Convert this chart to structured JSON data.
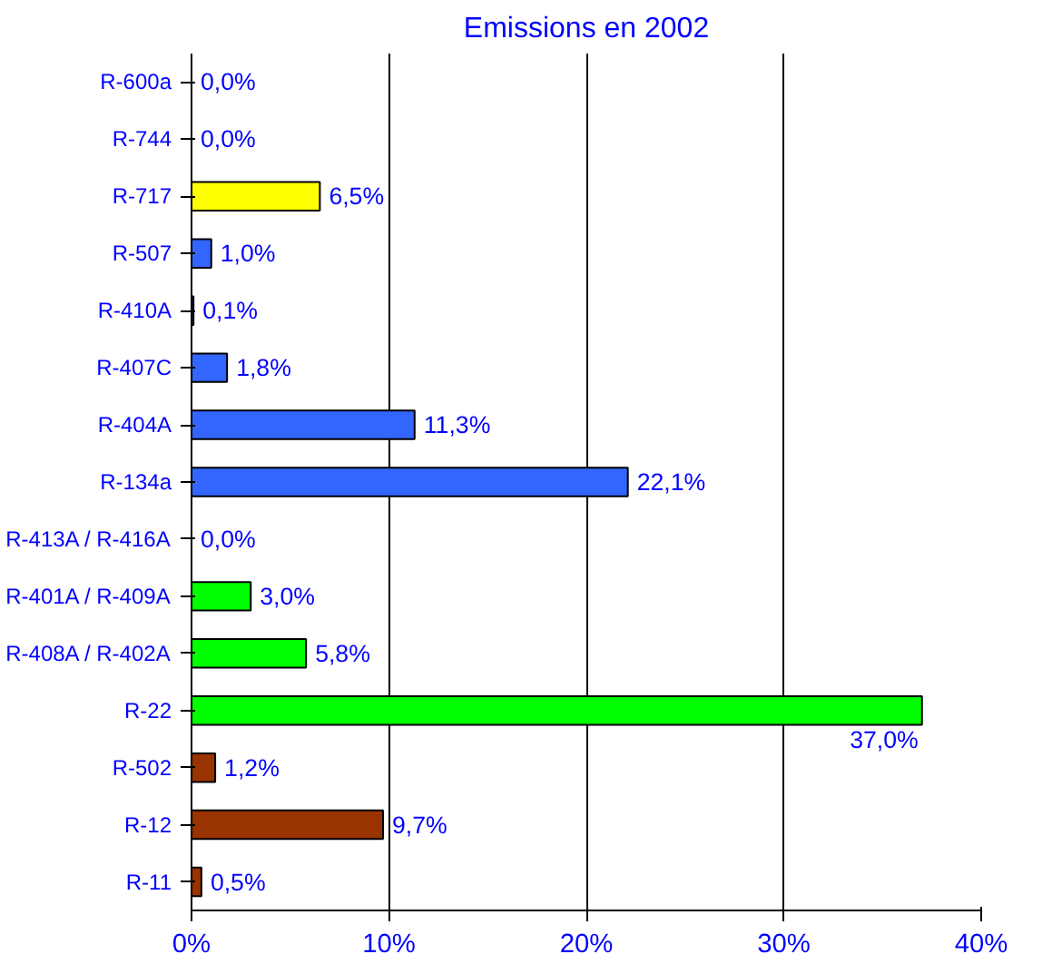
{
  "chart_data": {
    "type": "bar",
    "orientation": "horizontal",
    "title": "Emissions en 2002",
    "categories": [
      "R-600a",
      "R-744",
      "R-717",
      "R-507",
      "R-410A",
      "R-407C",
      "R-404A",
      "R-134a",
      "R-413A / R-416A",
      "R-401A / R-409A",
      "R-408A / R-402A",
      "R-22",
      "R-502",
      "R-12",
      "R-11"
    ],
    "values": [
      0.0,
      0.0,
      6.5,
      1.0,
      0.1,
      1.8,
      11.3,
      22.1,
      0.0,
      3.0,
      5.8,
      37.0,
      1.2,
      9.7,
      0.5
    ],
    "colors": [
      "#3366ff",
      "#3366ff",
      "#ffff00",
      "#3366ff",
      "#3366ff",
      "#3366ff",
      "#3366ff",
      "#3366ff",
      "#00ff00",
      "#00ff00",
      "#00ff00",
      "#00ff00",
      "#993300",
      "#993300",
      "#993300"
    ],
    "value_labels": [
      "0,0%",
      "0,0%",
      "6,5%",
      "1,0%",
      "0,1%",
      "1,8%",
      "11,3%",
      "22,1%",
      "0,0%",
      "3,0%",
      "5,8%",
      "37,0%",
      "1,2%",
      "9,7%",
      "0,5%"
    ],
    "xlim": [
      0,
      40
    ],
    "xticks": [
      {
        "value": 0,
        "label": "0%"
      },
      {
        "value": 10,
        "label": "10%"
      },
      {
        "value": 20,
        "label": "20%"
      },
      {
        "value": 30,
        "label": "30%"
      },
      {
        "value": 40,
        "label": "40%"
      }
    ],
    "grid": "x"
  }
}
